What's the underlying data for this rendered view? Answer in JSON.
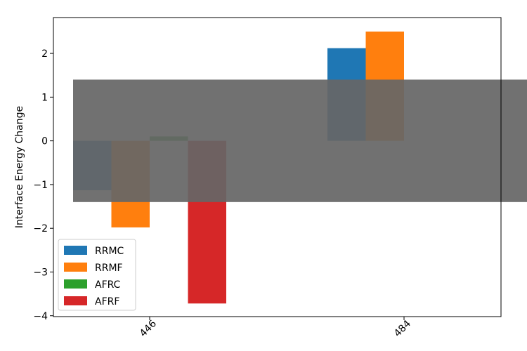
{
  "chart_data": {
    "type": "bar",
    "title": "",
    "xlabel": "",
    "ylabel": "Interface Energy Change",
    "categories": [
      "446",
      "484"
    ],
    "ylim": [
      -4.02,
      2.82
    ],
    "yticks": [
      -4,
      -3,
      -2,
      -1,
      0,
      1,
      2
    ],
    "ytick_labels": [
      "−4",
      "−3",
      "−2",
      "−1",
      "0",
      "1",
      "2"
    ],
    "series": [
      {
        "name": "RRMC",
        "color": "#1f77b4",
        "values": [
          -1.13,
          2.12
        ]
      },
      {
        "name": "RRMF",
        "color": "#ff7f0e",
        "values": [
          -1.98,
          2.5
        ]
      },
      {
        "name": "AFRC",
        "color": "#2ca02c",
        "values": [
          0.1,
          0
        ]
      },
      {
        "name": "AFRF",
        "color": "#d62728",
        "values": [
          -3.72,
          0
        ]
      }
    ],
    "band": {
      "y_min": -1.4,
      "y_max": 1.4,
      "color": "#666666",
      "opacity": 0.93
    },
    "grid": false,
    "legend_position": "lower-left",
    "xtick_rotation": 45
  }
}
